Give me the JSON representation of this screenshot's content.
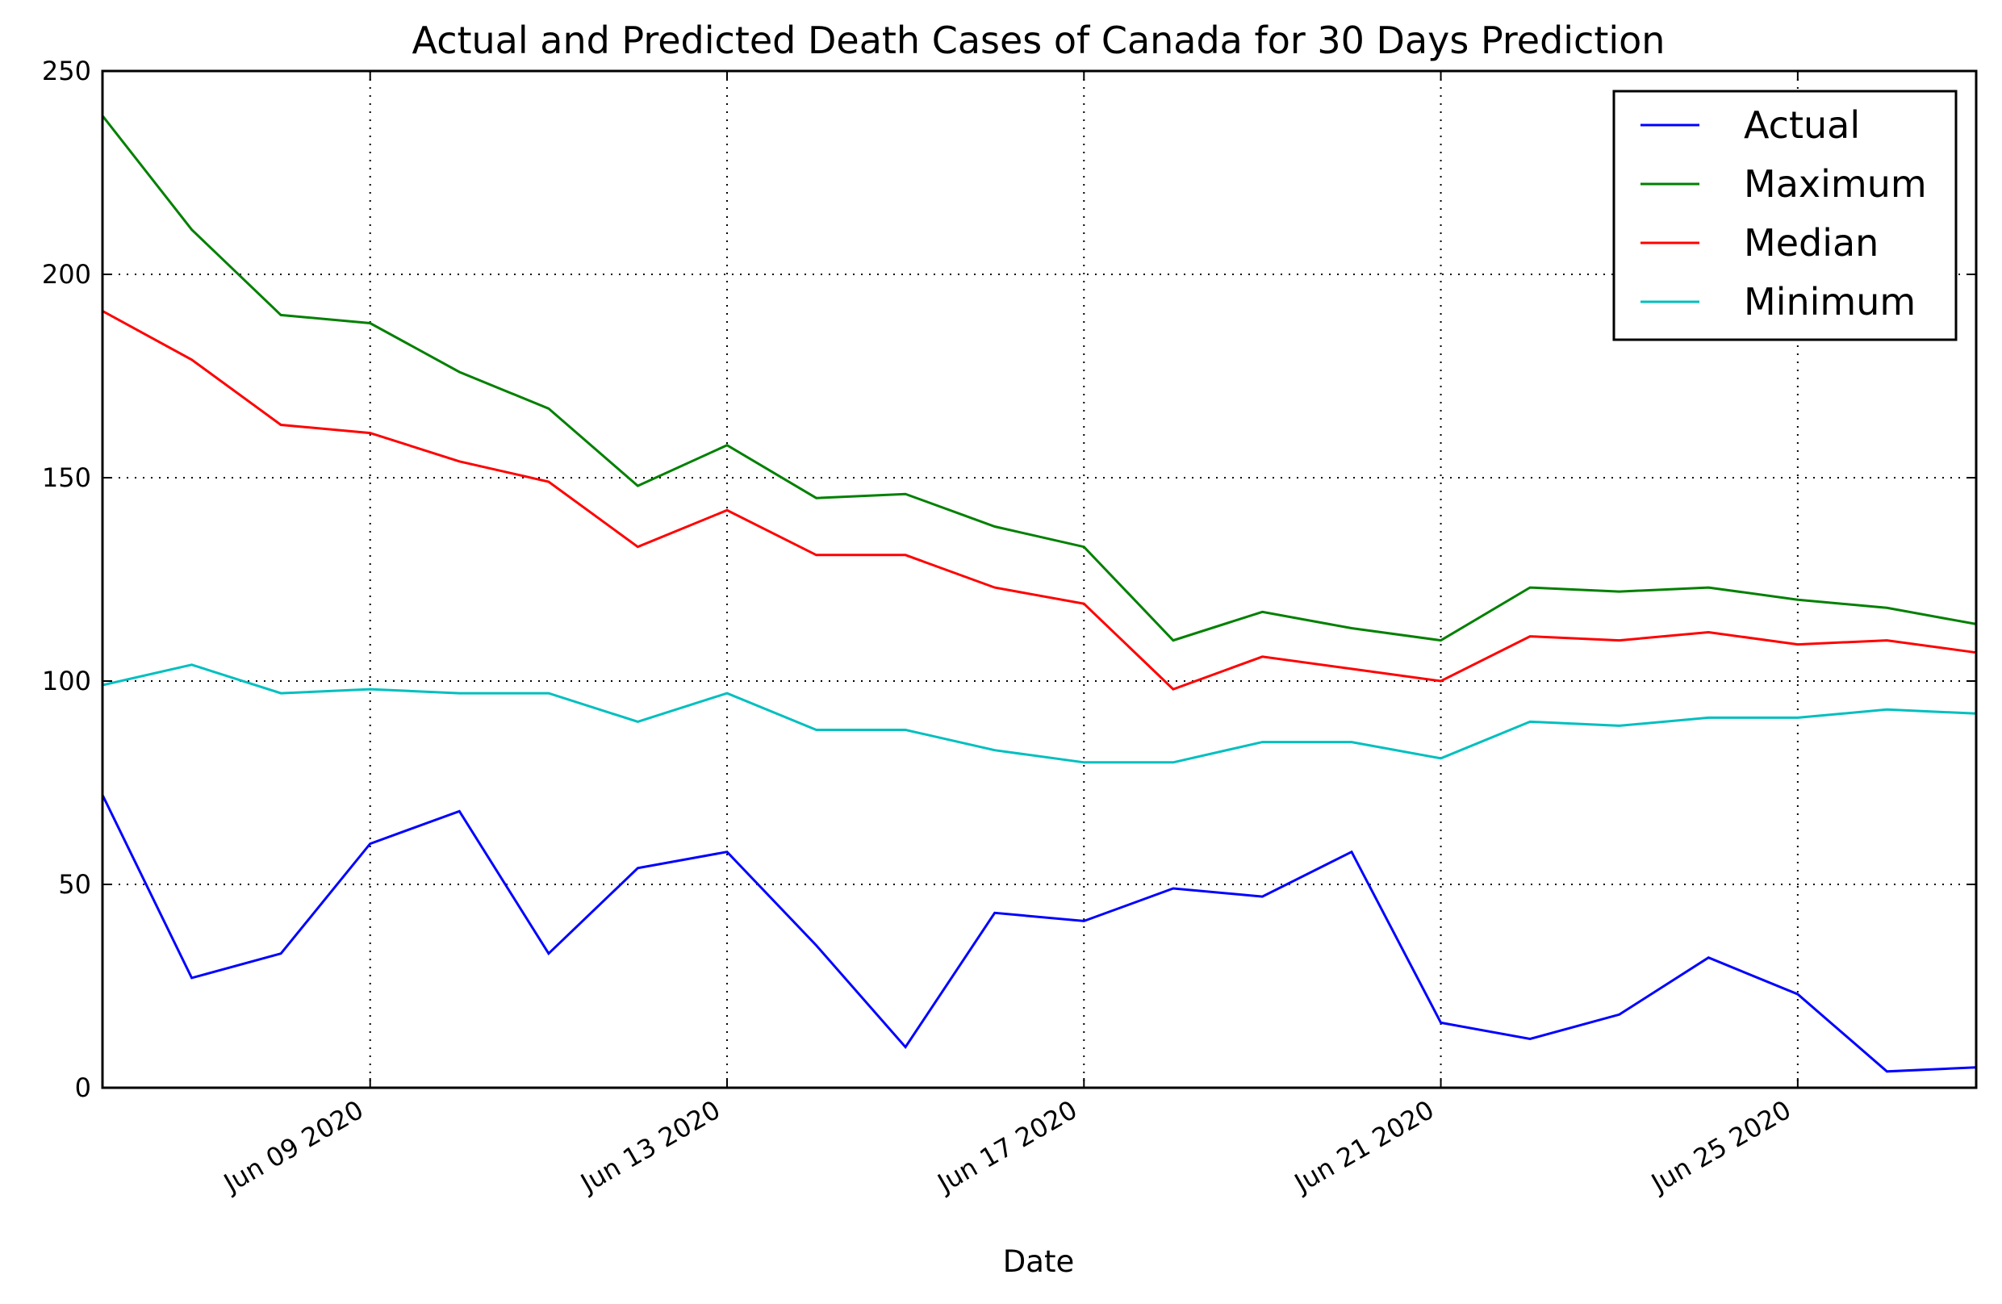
{
  "chart_data": {
    "type": "line",
    "title": "Actual and Predicted Death Cases of Canada for 30 Days Prediction",
    "xlabel": "Date",
    "ylabel": "",
    "x": [
      "2020-06-06",
      "2020-06-07",
      "2020-06-08",
      "2020-06-09",
      "2020-06-10",
      "2020-06-11",
      "2020-06-12",
      "2020-06-13",
      "2020-06-14",
      "2020-06-15",
      "2020-06-16",
      "2020-06-17",
      "2020-06-18",
      "2020-06-19",
      "2020-06-20",
      "2020-06-21",
      "2020-06-22",
      "2020-06-23",
      "2020-06-24",
      "2020-06-25",
      "2020-06-26",
      "2020-06-27"
    ],
    "xlim": [
      "2020-06-06",
      "2020-06-27"
    ],
    "x_ticks": [
      "2020-06-09",
      "2020-06-13",
      "2020-06-17",
      "2020-06-21",
      "2020-06-25"
    ],
    "x_tick_labels": [
      "Jun 09 2020",
      "Jun 13 2020",
      "Jun 17 2020",
      "Jun 21 2020",
      "Jun 25 2020"
    ],
    "ylim": [
      0,
      250
    ],
    "y_ticks": [
      0,
      50,
      100,
      150,
      200,
      250
    ],
    "y_tick_labels": [
      "0",
      "50",
      "100",
      "150",
      "200",
      "250"
    ],
    "grid": true,
    "legend_position": "top-right",
    "series": [
      {
        "name": "Actual",
        "color": "#0000ff",
        "values": [
          72,
          27,
          33,
          60,
          68,
          33,
          54,
          58,
          35,
          10,
          43,
          41,
          49,
          47,
          58,
          16,
          12,
          18,
          32,
          23,
          4,
          5
        ]
      },
      {
        "name": "Maximum",
        "color": "#008000",
        "values": [
          239,
          211,
          190,
          188,
          176,
          167,
          148,
          158,
          145,
          146,
          138,
          133,
          110,
          117,
          113,
          110,
          123,
          122,
          123,
          120,
          118,
          114
        ]
      },
      {
        "name": "Median",
        "color": "#ff0000",
        "values": [
          191,
          179,
          163,
          161,
          154,
          149,
          133,
          142,
          131,
          131,
          123,
          119,
          98,
          106,
          103,
          100,
          111,
          110,
          112,
          109,
          110,
          107
        ]
      },
      {
        "name": "Minimum",
        "color": "#00bfbf",
        "values": [
          99,
          104,
          97,
          98,
          97,
          97,
          90,
          97,
          88,
          88,
          83,
          80,
          80,
          85,
          85,
          81,
          90,
          89,
          91,
          91,
          93,
          92
        ]
      }
    ]
  }
}
